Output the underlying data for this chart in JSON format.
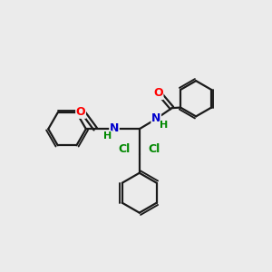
{
  "background_color": "#ebebeb",
  "bond_color": "#1a1a1a",
  "atom_colors": {
    "O": "#ff0000",
    "N": "#0000cc",
    "H": "#008800",
    "Cl": "#008800",
    "C": "#1a1a1a"
  },
  "figsize": [
    3.0,
    3.0
  ],
  "dpi": 100
}
